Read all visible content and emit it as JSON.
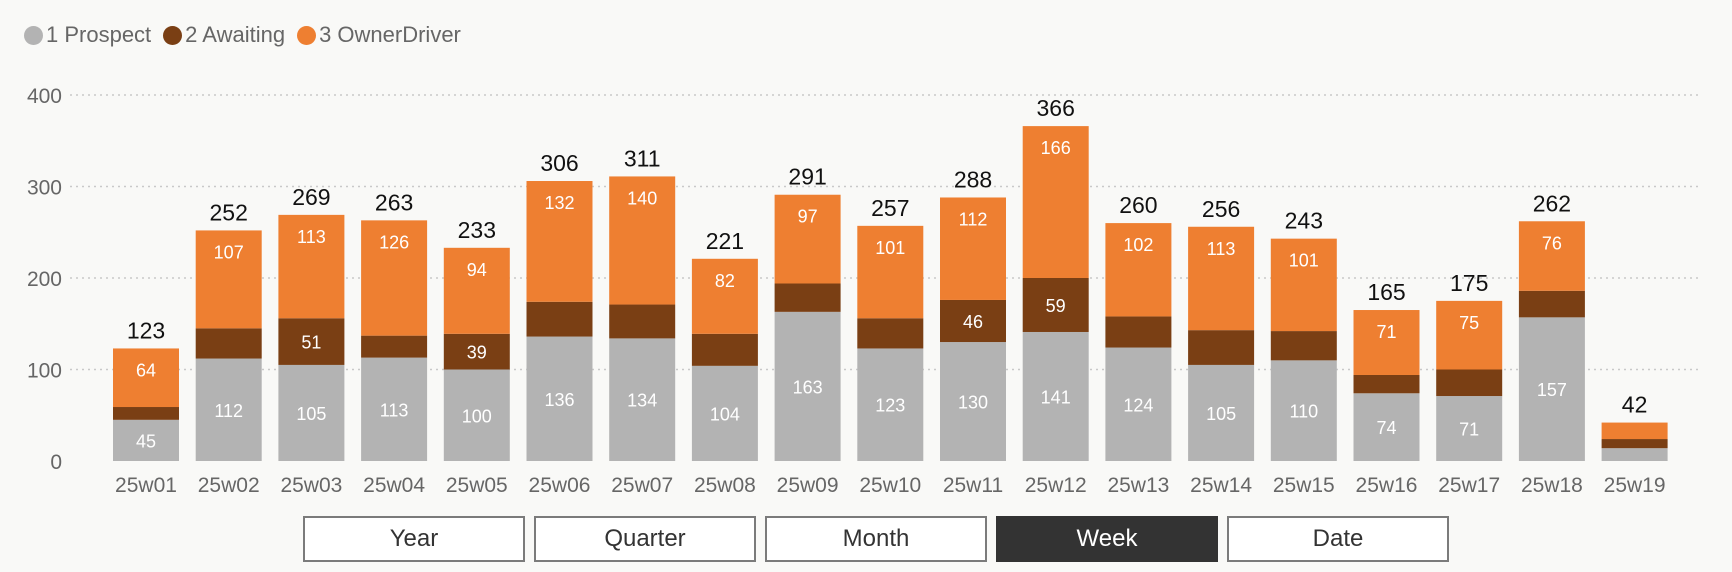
{
  "legend": [
    {
      "label": "1 Prospect",
      "color": "#b3b3b3"
    },
    {
      "label": "2 Awaiting",
      "color": "#7a3f14"
    },
    {
      "label": "3 OwnerDriver",
      "color": "#ee7f31"
    }
  ],
  "chart_data": {
    "type": "bar",
    "stacked": true,
    "categories": [
      "25w01",
      "25w02",
      "25w03",
      "25w04",
      "25w05",
      "25w06",
      "25w07",
      "25w08",
      "25w09",
      "25w10",
      "25w11",
      "25w12",
      "25w13",
      "25w14",
      "25w15",
      "25w16",
      "25w17",
      "25w18",
      "25w19"
    ],
    "series": [
      {
        "name": "1 Prospect",
        "color": "#b3b3b3",
        "values": [
          45,
          112,
          105,
          113,
          100,
          136,
          134,
          104,
          163,
          123,
          130,
          141,
          124,
          105,
          110,
          74,
          71,
          157,
          14
        ]
      },
      {
        "name": "2 Awaiting",
        "color": "#7a3f14",
        "values": [
          14,
          33,
          51,
          24,
          39,
          38,
          37,
          35,
          31,
          33,
          46,
          59,
          34,
          38,
          32,
          20,
          29,
          29,
          10
        ]
      },
      {
        "name": "3 OwnerDriver",
        "color": "#ee7f31",
        "values": [
          64,
          107,
          113,
          126,
          94,
          132,
          140,
          82,
          97,
          101,
          112,
          166,
          102,
          113,
          101,
          71,
          75,
          76,
          18
        ]
      }
    ],
    "totals": [
      123,
      252,
      269,
      263,
      233,
      306,
      311,
      221,
      291,
      257,
      288,
      366,
      260,
      256,
      243,
      165,
      175,
      262,
      42
    ],
    "segment_labels": [
      [
        "45",
        "",
        "64"
      ],
      [
        "112",
        "",
        "107"
      ],
      [
        "105",
        "51",
        "113"
      ],
      [
        "113",
        "",
        "126"
      ],
      [
        "100",
        "39",
        "94"
      ],
      [
        "136",
        "",
        "132"
      ],
      [
        "134",
        "",
        "140"
      ],
      [
        "104",
        "",
        "82"
      ],
      [
        "163",
        "",
        "97"
      ],
      [
        "123",
        "",
        "101"
      ],
      [
        "130",
        "46",
        "112"
      ],
      [
        "141",
        "59",
        "166"
      ],
      [
        "124",
        "",
        "102"
      ],
      [
        "105",
        "",
        "113"
      ],
      [
        "110",
        "",
        "101"
      ],
      [
        "74",
        "",
        "71"
      ],
      [
        "71",
        "",
        "75"
      ],
      [
        "157",
        "",
        "76"
      ],
      [
        "",
        "",
        ""
      ]
    ],
    "ylim": [
      0,
      400
    ],
    "yticks": [
      0,
      100,
      200,
      300,
      400
    ],
    "grid": true,
    "legend_position": "top-left"
  },
  "period_buttons": [
    {
      "label": "Year",
      "active": false
    },
    {
      "label": "Quarter",
      "active": false
    },
    {
      "label": "Month",
      "active": false
    },
    {
      "label": "Week",
      "active": true
    },
    {
      "label": "Date",
      "active": false
    }
  ]
}
